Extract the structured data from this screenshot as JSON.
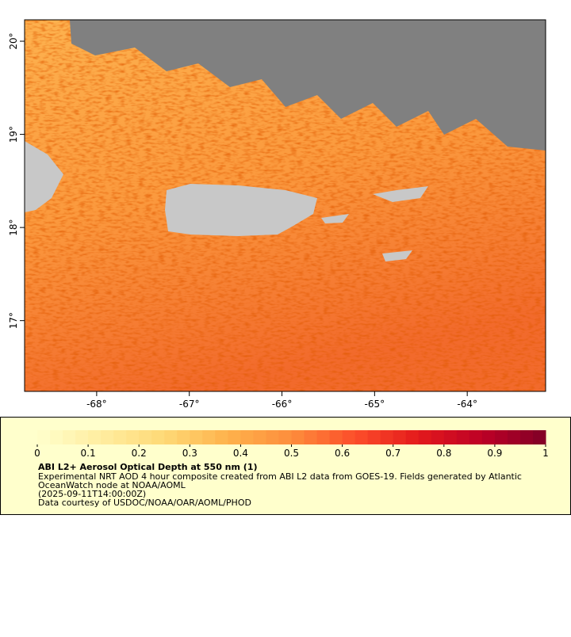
{
  "map": {
    "xaxis": {
      "lim": [
        -68.778,
        -63.154
      ],
      "ticks": [
        {
          "value": -68,
          "label": "-68°"
        },
        {
          "value": -67,
          "label": "-67°"
        },
        {
          "value": -66,
          "label": "-66°"
        },
        {
          "value": -65,
          "label": "-65°"
        },
        {
          "value": -64,
          "label": "-64°"
        }
      ]
    },
    "yaxis": {
      "lim": [
        16.24,
        20.23
      ],
      "ticks": [
        {
          "value": 17,
          "label": "17°"
        },
        {
          "value": 18,
          "label": "18°"
        },
        {
          "value": 19,
          "label": "19°"
        },
        {
          "value": 20,
          "label": "20°"
        }
      ]
    }
  },
  "legend": {
    "lim": [
      0,
      1
    ],
    "ticks": [
      0,
      0.1,
      0.2,
      0.3,
      0.4,
      0.5,
      0.6,
      0.7,
      0.8,
      0.9,
      1
    ],
    "colors": [
      "#ffffcc",
      "#ffeda0",
      "#fed976",
      "#feb24c",
      "#fd8d3c",
      "#fc4e2a",
      "#e31a1c",
      "#bd0026",
      "#800026"
    ]
  },
  "caption": {
    "title": "ABI L2+ Aerosol Optical Depth at 550 nm (1)",
    "lines": [
      "Experimental NRT AOD 4 hour composite created from ABI L2 data from GOES-19. Fields generated by Atlantic",
      "OceanWatch node at NOAA/AOML",
      "(2025-09-11T14:00:00Z)",
      "Data courtesy of USDOC/NOAA/OAR/AOML/PHOD"
    ]
  }
}
